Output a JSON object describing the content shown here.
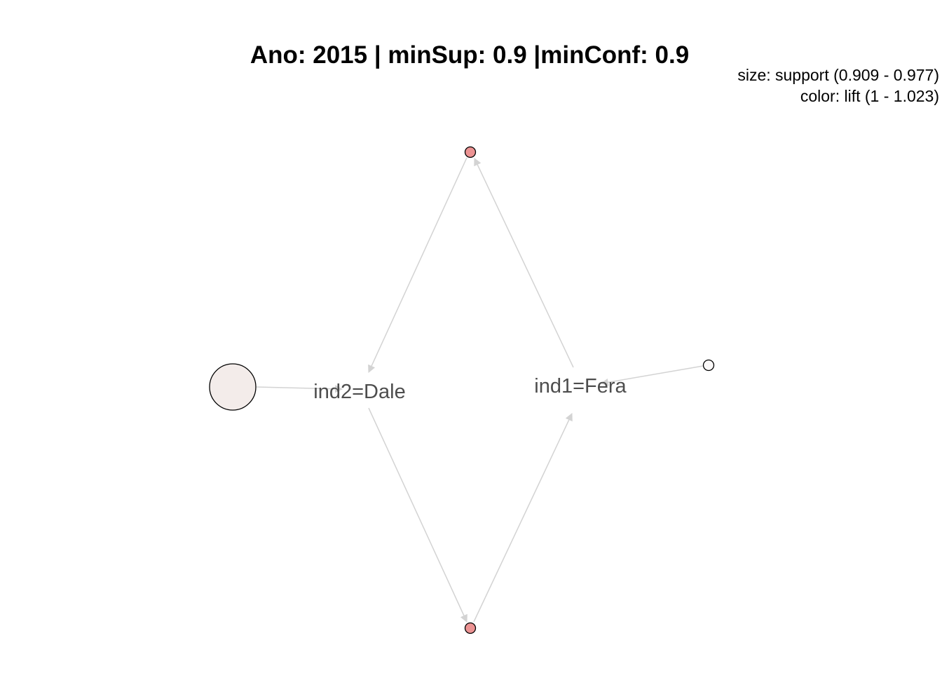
{
  "title": "Ano: 2015 | minSup: 0.9 |minConf: 0.9",
  "legend": {
    "size_line": "size: support (0.909 - 0.977)",
    "color_line": "color: lift (1 - 1.023)"
  },
  "colors": {
    "low_lift": "#f3ecea",
    "high_lift": "#ec9393",
    "mid_lift": "#fbf9f9",
    "edge": "#d3d3d3",
    "label": "#4d4d4d"
  },
  "items": [
    {
      "id": "dale",
      "label": "ind2=Dale"
    },
    {
      "id": "fera",
      "label": "ind1=Fera"
    }
  ],
  "rules": [
    {
      "id": "rule-left",
      "lhs": [],
      "rhs": "dale",
      "support": 0.977,
      "lift": 1.0,
      "color": "#f3ecea"
    },
    {
      "id": "rule-top",
      "lhs": [
        "fera"
      ],
      "rhs": "dale",
      "support": 0.909,
      "lift": 1.023,
      "color": "#ec9393"
    },
    {
      "id": "rule-bottom",
      "lhs": [
        "dale"
      ],
      "rhs": "fera",
      "support": 0.909,
      "lift": 1.023,
      "color": "#ec9393"
    },
    {
      "id": "rule-right",
      "lhs": [],
      "rhs": "fera",
      "support": 0.93,
      "lift": 1.0,
      "color": "#fbf9f9"
    }
  ]
}
